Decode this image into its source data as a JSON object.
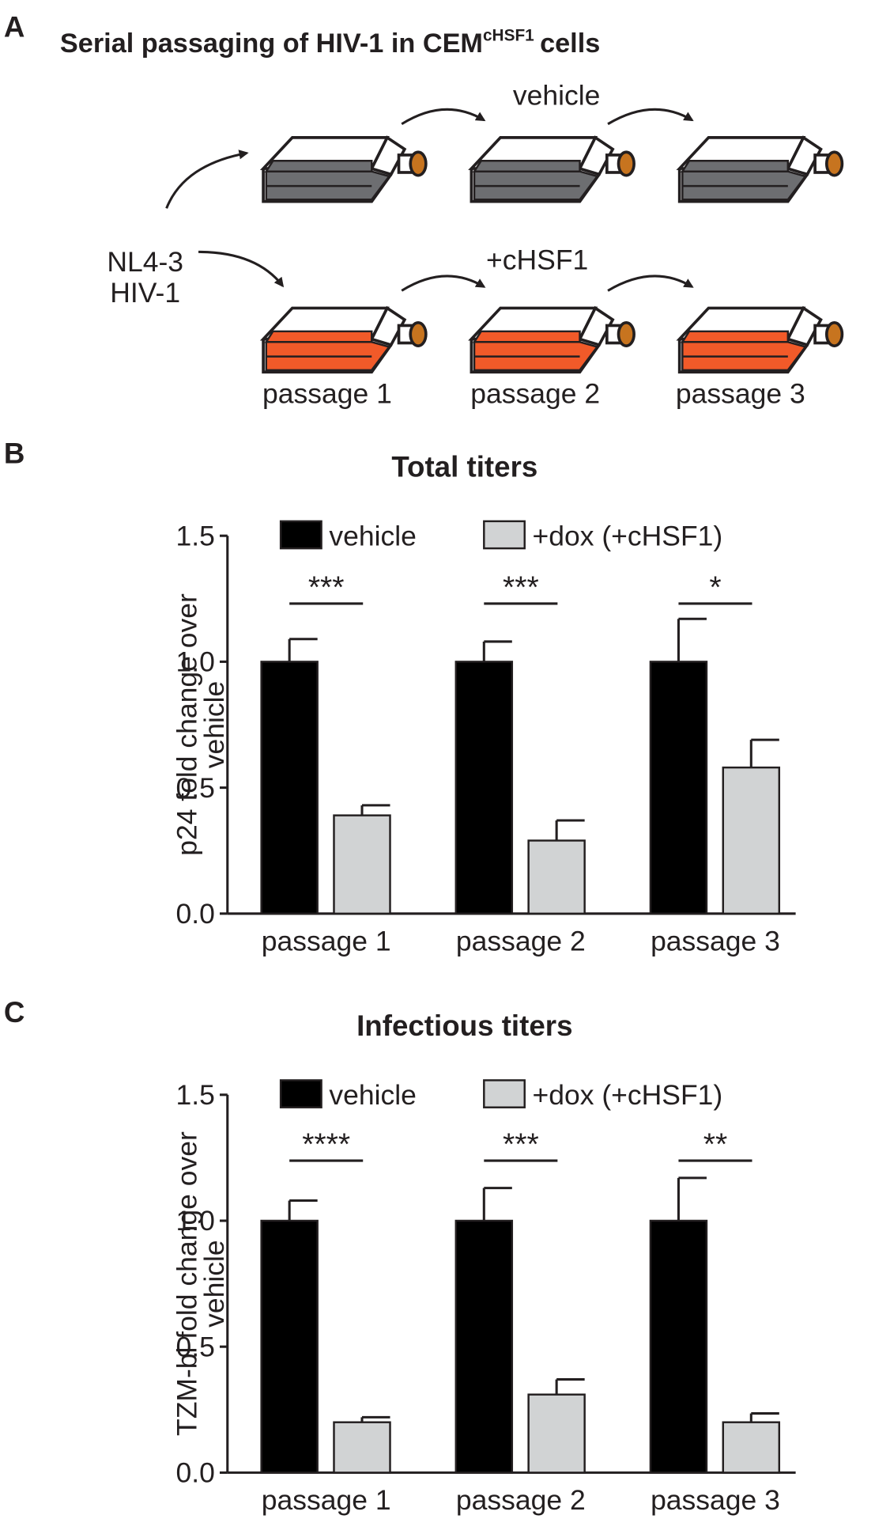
{
  "panel_a": {
    "label": "A",
    "title": "Serial passaging of HIV-1 in CEM",
    "title_sup": "cHSF1",
    "title_end": "cells",
    "virus": [
      "NL4-3",
      "HIV-1"
    ],
    "conditions": [
      "vehicle",
      "+cHSF1"
    ],
    "passages": [
      "passage 1",
      "passage 2",
      "passage 3"
    ]
  },
  "chart_data": [
    {
      "type": "bar",
      "panel_label": "B",
      "title": "Total titers",
      "y_label": [
        "p24 fold change over",
        "vehicle"
      ],
      "categories": [
        "passage 1",
        "passage 2",
        "passage 3"
      ],
      "series": [
        {
          "name": "vehicle",
          "color": "#000000",
          "values": [
            1.0,
            1.0,
            1.0
          ],
          "errors": [
            0.09,
            0.08,
            0.17
          ]
        },
        {
          "name": "+dox (+cHSF1)",
          "color": "#d1d3d4",
          "values": [
            0.39,
            0.29,
            0.58
          ],
          "errors": [
            0.04,
            0.08,
            0.11
          ]
        }
      ],
      "significance": [
        "***",
        "***",
        "*"
      ],
      "ylim": [
        0,
        1.5
      ],
      "yticks": [
        {
          "value": 0,
          "label": "0.0"
        },
        0.5,
        {
          "value": 1,
          "label": "1.0"
        },
        1.5
      ]
    },
    {
      "type": "bar",
      "panel_label": "C",
      "title": "Infectious titers",
      "y_label": [
        "TZM-bl fold change over",
        "vehicle"
      ],
      "categories": [
        "passage 1",
        "passage 2",
        "passage 3"
      ],
      "series": [
        {
          "name": "vehicle",
          "color": "#000000",
          "values": [
            1.0,
            1.0,
            1.0
          ],
          "errors": [
            0.08,
            0.13,
            0.17
          ]
        },
        {
          "name": "+dox (+cHSF1)",
          "color": "#d1d3d4",
          "values": [
            0.2,
            0.31,
            0.2
          ],
          "errors": [
            0.02,
            0.06,
            0.035
          ]
        }
      ],
      "significance": [
        "****",
        "***",
        "**"
      ],
      "ylim": [
        0,
        1.5
      ],
      "yticks": [
        {
          "value": 0,
          "label": "0.0"
        },
        0.5,
        {
          "value": 1,
          "label": "1.0"
        },
        1.5
      ]
    }
  ]
}
